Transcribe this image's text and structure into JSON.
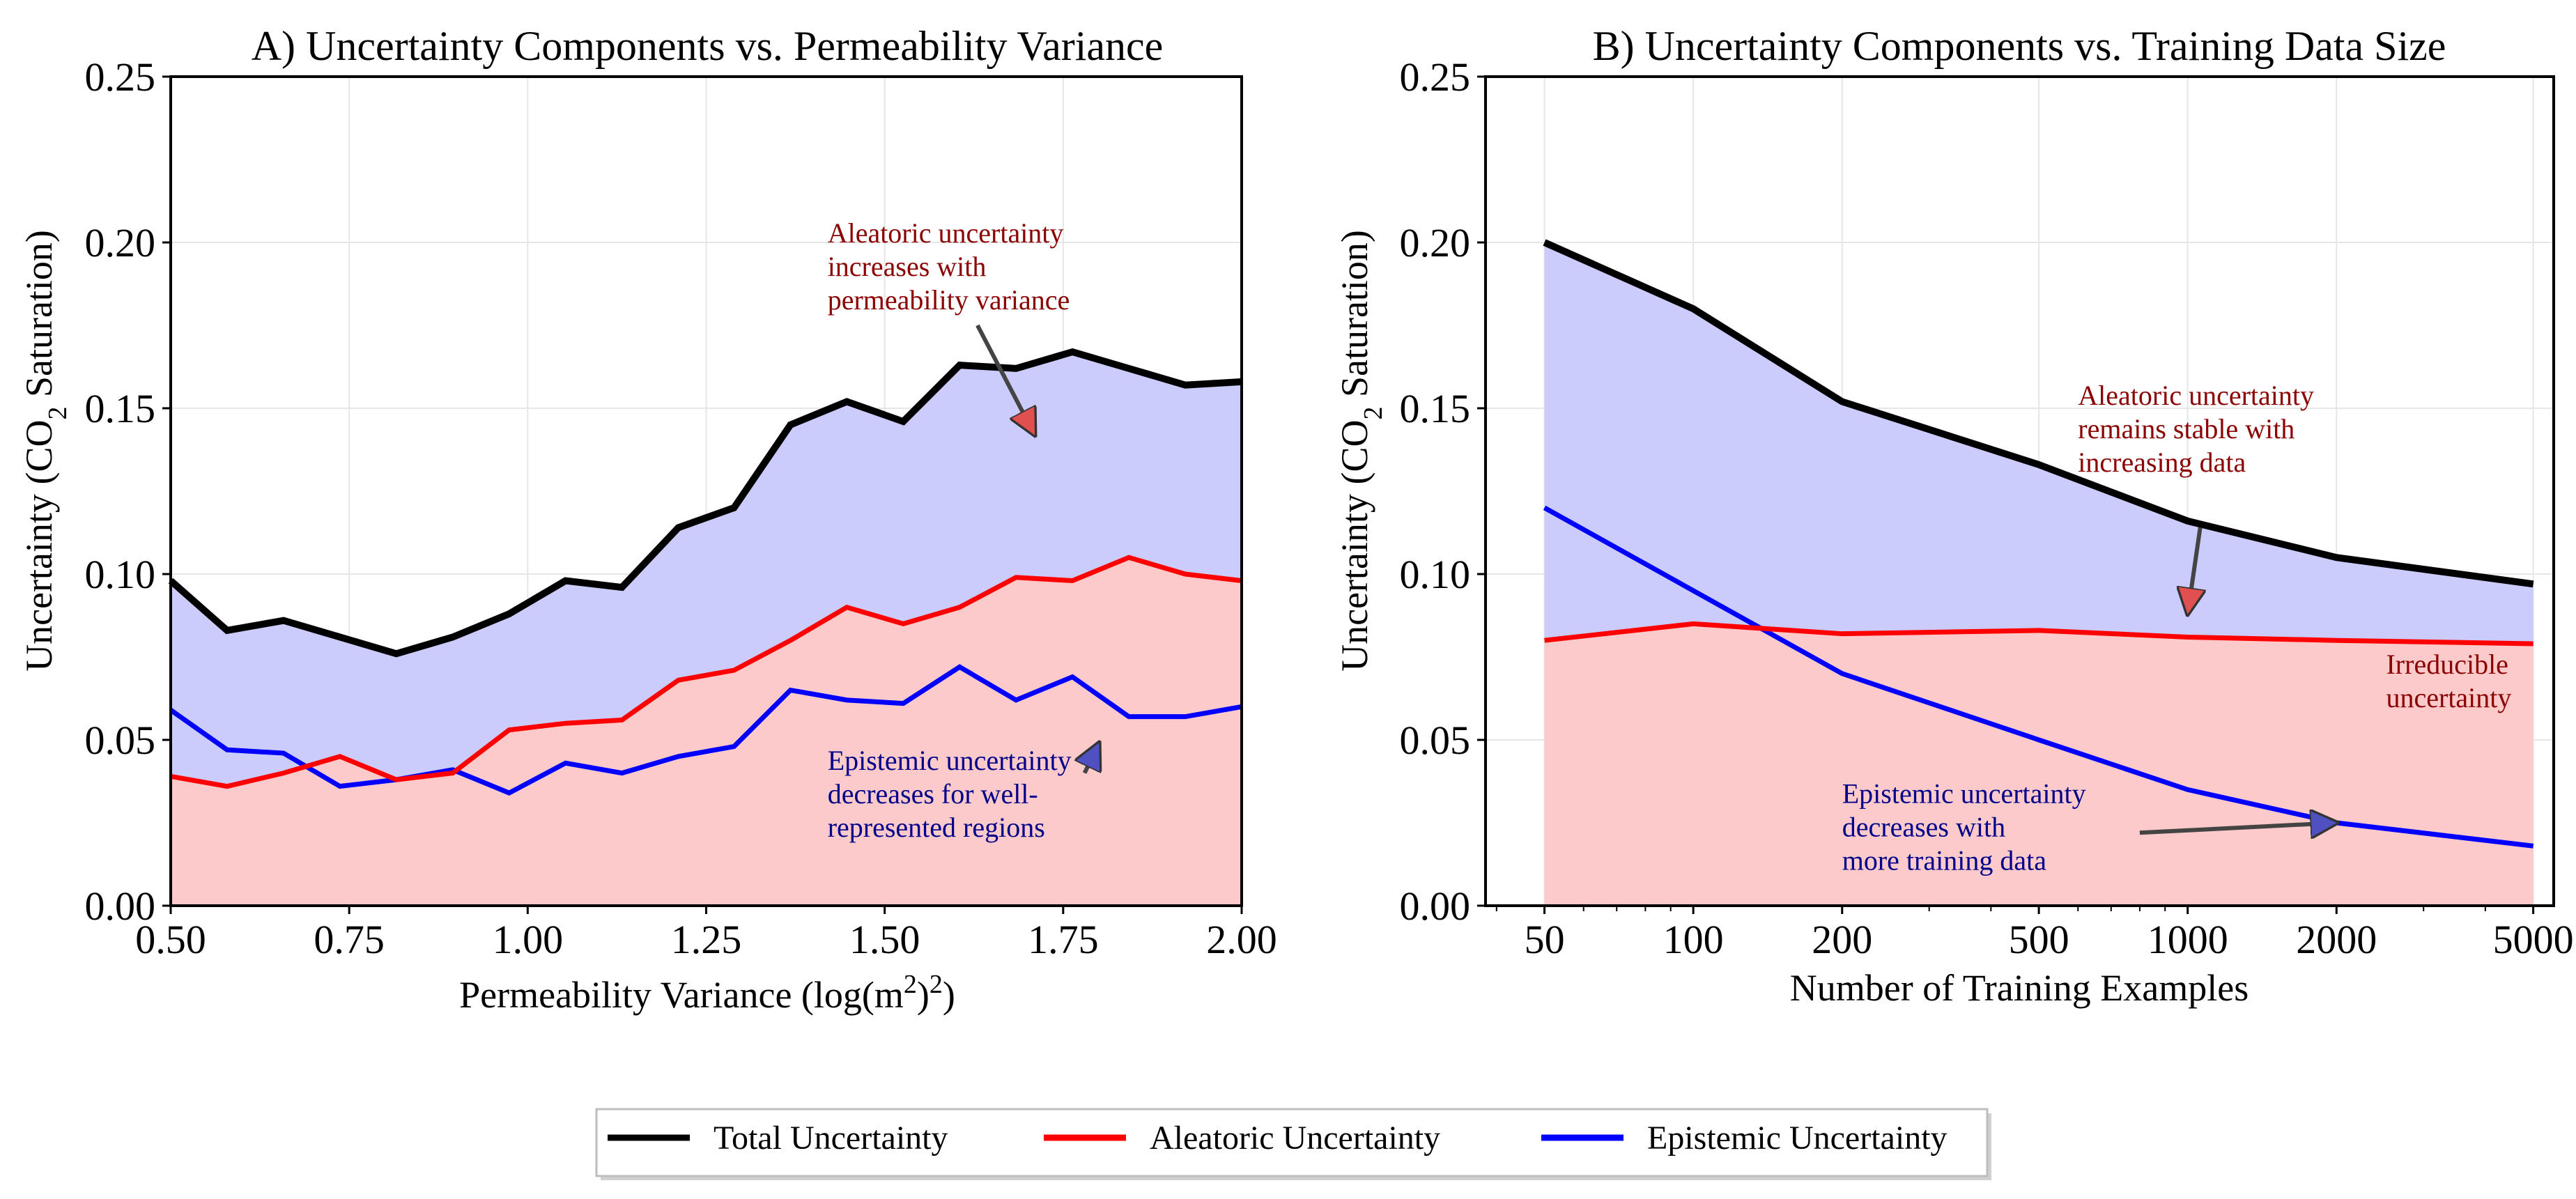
{
  "colors": {
    "total": "#000000",
    "aleatoric": "#ff0000",
    "epistemic": "#0000ff",
    "aleatoric_fill": "#fccaca",
    "epistemic_fill": "#cbccfb",
    "aleatoric_anno": "#8b0000",
    "epistemic_anno": "#00008b"
  },
  "legend": {
    "total": "Total Uncertainty",
    "aleatoric": "Aleatoric Uncertainty",
    "epistemic": "Epistemic Uncertainty"
  },
  "chart_data": [
    {
      "type": "line",
      "title": "A) Uncertainty Components vs. Permeability Variance",
      "xlabel": "Permeability Variance (log(m²)²)",
      "xlabel_parts": {
        "main": "Permeability Variance (log(m",
        "sup1": "2",
        "mid": ")",
        "sup2": "2",
        "end": ")"
      },
      "ylabel": "Uncertainty (CO₂ Saturation)",
      "ylabel_parts": {
        "main": "Uncertainty (CO",
        "sub": "2",
        "end": " Saturation)"
      },
      "xscale": "linear",
      "xlim": [
        0.5,
        2.0
      ],
      "ylim": [
        0,
        0.25
      ],
      "xticks": [
        "0.50",
        "0.75",
        "1.00",
        "1.25",
        "1.50",
        "1.75",
        "2.00"
      ],
      "xtick_values": [
        0.5,
        0.75,
        1.0,
        1.25,
        1.5,
        1.75,
        2.0
      ],
      "yticks": [
        "0.00",
        "0.05",
        "0.10",
        "0.15",
        "0.20",
        "0.25"
      ],
      "ytick_values": [
        0,
        0.05,
        0.1,
        0.15,
        0.2,
        0.25
      ],
      "x": [
        0.5,
        0.579,
        0.658,
        0.737,
        0.816,
        0.895,
        0.974,
        1.053,
        1.132,
        1.211,
        1.289,
        1.368,
        1.447,
        1.526,
        1.605,
        1.684,
        1.763,
        1.842,
        1.921,
        2.0
      ],
      "series": [
        {
          "name": "Total Uncertainty",
          "key": "total",
          "values": [
            0.098,
            0.083,
            0.086,
            0.081,
            0.076,
            0.081,
            0.088,
            0.098,
            0.096,
            0.114,
            0.12,
            0.145,
            0.152,
            0.146,
            0.163,
            0.162,
            0.167,
            0.162,
            0.157,
            0.158
          ]
        },
        {
          "name": "Aleatoric Uncertainty",
          "key": "aleatoric",
          "values": [
            0.039,
            0.036,
            0.04,
            0.045,
            0.038,
            0.04,
            0.053,
            0.055,
            0.056,
            0.068,
            0.071,
            0.08,
            0.09,
            0.085,
            0.09,
            0.099,
            0.098,
            0.105,
            0.1,
            0.098
          ]
        },
        {
          "name": "Epistemic Uncertainty",
          "key": "epistemic",
          "values": [
            0.059,
            0.047,
            0.046,
            0.036,
            0.038,
            0.041,
            0.034,
            0.043,
            0.04,
            0.045,
            0.048,
            0.065,
            0.062,
            0.061,
            0.072,
            0.062,
            0.069,
            0.057,
            0.057,
            0.06
          ]
        }
      ],
      "annotations": [
        {
          "lines": [
            "Aleatoric uncertainty",
            "increases with",
            "permeability variance"
          ],
          "color": "aleatoric",
          "text_at": [
            1.42,
            0.2
          ],
          "arrow_from": [
            1.63,
            0.175
          ],
          "arrow_to": [
            1.71,
            0.142
          ]
        },
        {
          "lines": [
            "Epistemic uncertainty",
            "decreases for well-",
            "represented regions"
          ],
          "color": "epistemic",
          "text_at": [
            1.42,
            0.041
          ],
          "arrow_from": [
            1.78,
            0.04
          ],
          "arrow_to": [
            1.8,
            0.049
          ]
        }
      ]
    },
    {
      "type": "line",
      "title": "B) Uncertainty Components vs. Training Data Size",
      "xlabel": "Number of Training Examples",
      "ylabel": "Uncertainty (CO₂ Saturation)",
      "ylabel_parts": {
        "main": "Uncertainty (CO",
        "sub": "2",
        "end": " Saturation)"
      },
      "xscale": "log",
      "xlim": [
        38,
        5500
      ],
      "ylim": [
        0,
        0.25
      ],
      "xticks": [
        "50",
        "100",
        "200",
        "500",
        "1000",
        "2000",
        "5000"
      ],
      "xtick_values": [
        50,
        100,
        200,
        500,
        1000,
        2000,
        5000
      ],
      "yticks": [
        "0.00",
        "0.05",
        "0.10",
        "0.15",
        "0.20",
        "0.25"
      ],
      "ytick_values": [
        0,
        0.05,
        0.1,
        0.15,
        0.2,
        0.25
      ],
      "x": [
        50,
        100,
        200,
        500,
        1000,
        2000,
        5000
      ],
      "series": [
        {
          "name": "Total Uncertainty",
          "key": "total",
          "values": [
            0.2,
            0.18,
            0.152,
            0.133,
            0.116,
            0.105,
            0.097
          ]
        },
        {
          "name": "Aleatoric Uncertainty",
          "key": "aleatoric",
          "values": [
            0.08,
            0.085,
            0.082,
            0.083,
            0.081,
            0.08,
            0.079
          ]
        },
        {
          "name": "Epistemic Uncertainty",
          "key": "epistemic",
          "values": [
            0.12,
            0.095,
            0.07,
            0.05,
            0.035,
            0.025,
            0.018
          ]
        }
      ],
      "annotations": [
        {
          "lines": [
            "Aleatoric uncertainty",
            "remains stable with",
            "increasing data"
          ],
          "color": "aleatoric",
          "text_at": [
            600,
            0.151
          ],
          "arrow_from": [
            1060,
            0.114
          ],
          "arrow_to": [
            1000,
            0.088
          ]
        },
        {
          "lines": [
            "Irreducible",
            "uncertainty"
          ],
          "color": "aleatoric",
          "text_at": [
            2520,
            0.07
          ]
        },
        {
          "lines": [
            "Epistemic uncertainty",
            "decreases with",
            "more training data"
          ],
          "color": "epistemic",
          "text_at": [
            200,
            0.031
          ],
          "arrow_from": [
            800,
            0.022
          ],
          "arrow_to": [
            2000,
            0.025
          ]
        }
      ]
    }
  ]
}
